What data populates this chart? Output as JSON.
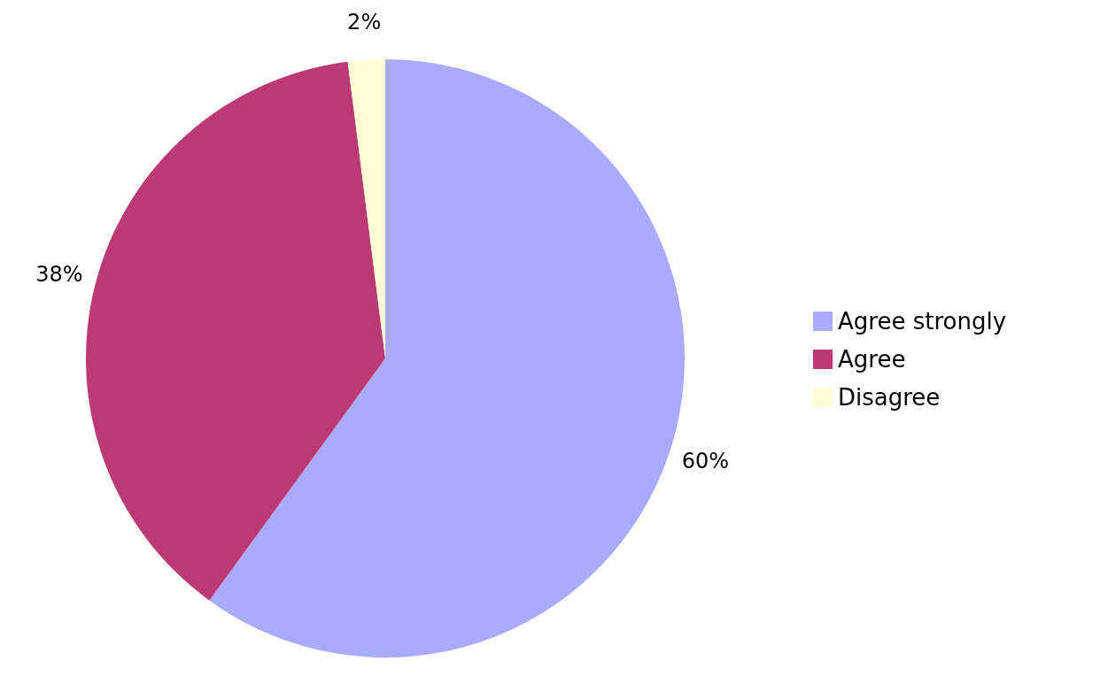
{
  "chart_data": {
    "type": "pie",
    "categories": [
      "Agree strongly",
      "Agree",
      "Disagree"
    ],
    "values": [
      60,
      38,
      2
    ],
    "colors": [
      "#aaaaff",
      "#bb3a74",
      "#ffffd5"
    ],
    "value_labels": [
      "60%",
      "38%",
      "2%"
    ],
    "legend": "right"
  }
}
